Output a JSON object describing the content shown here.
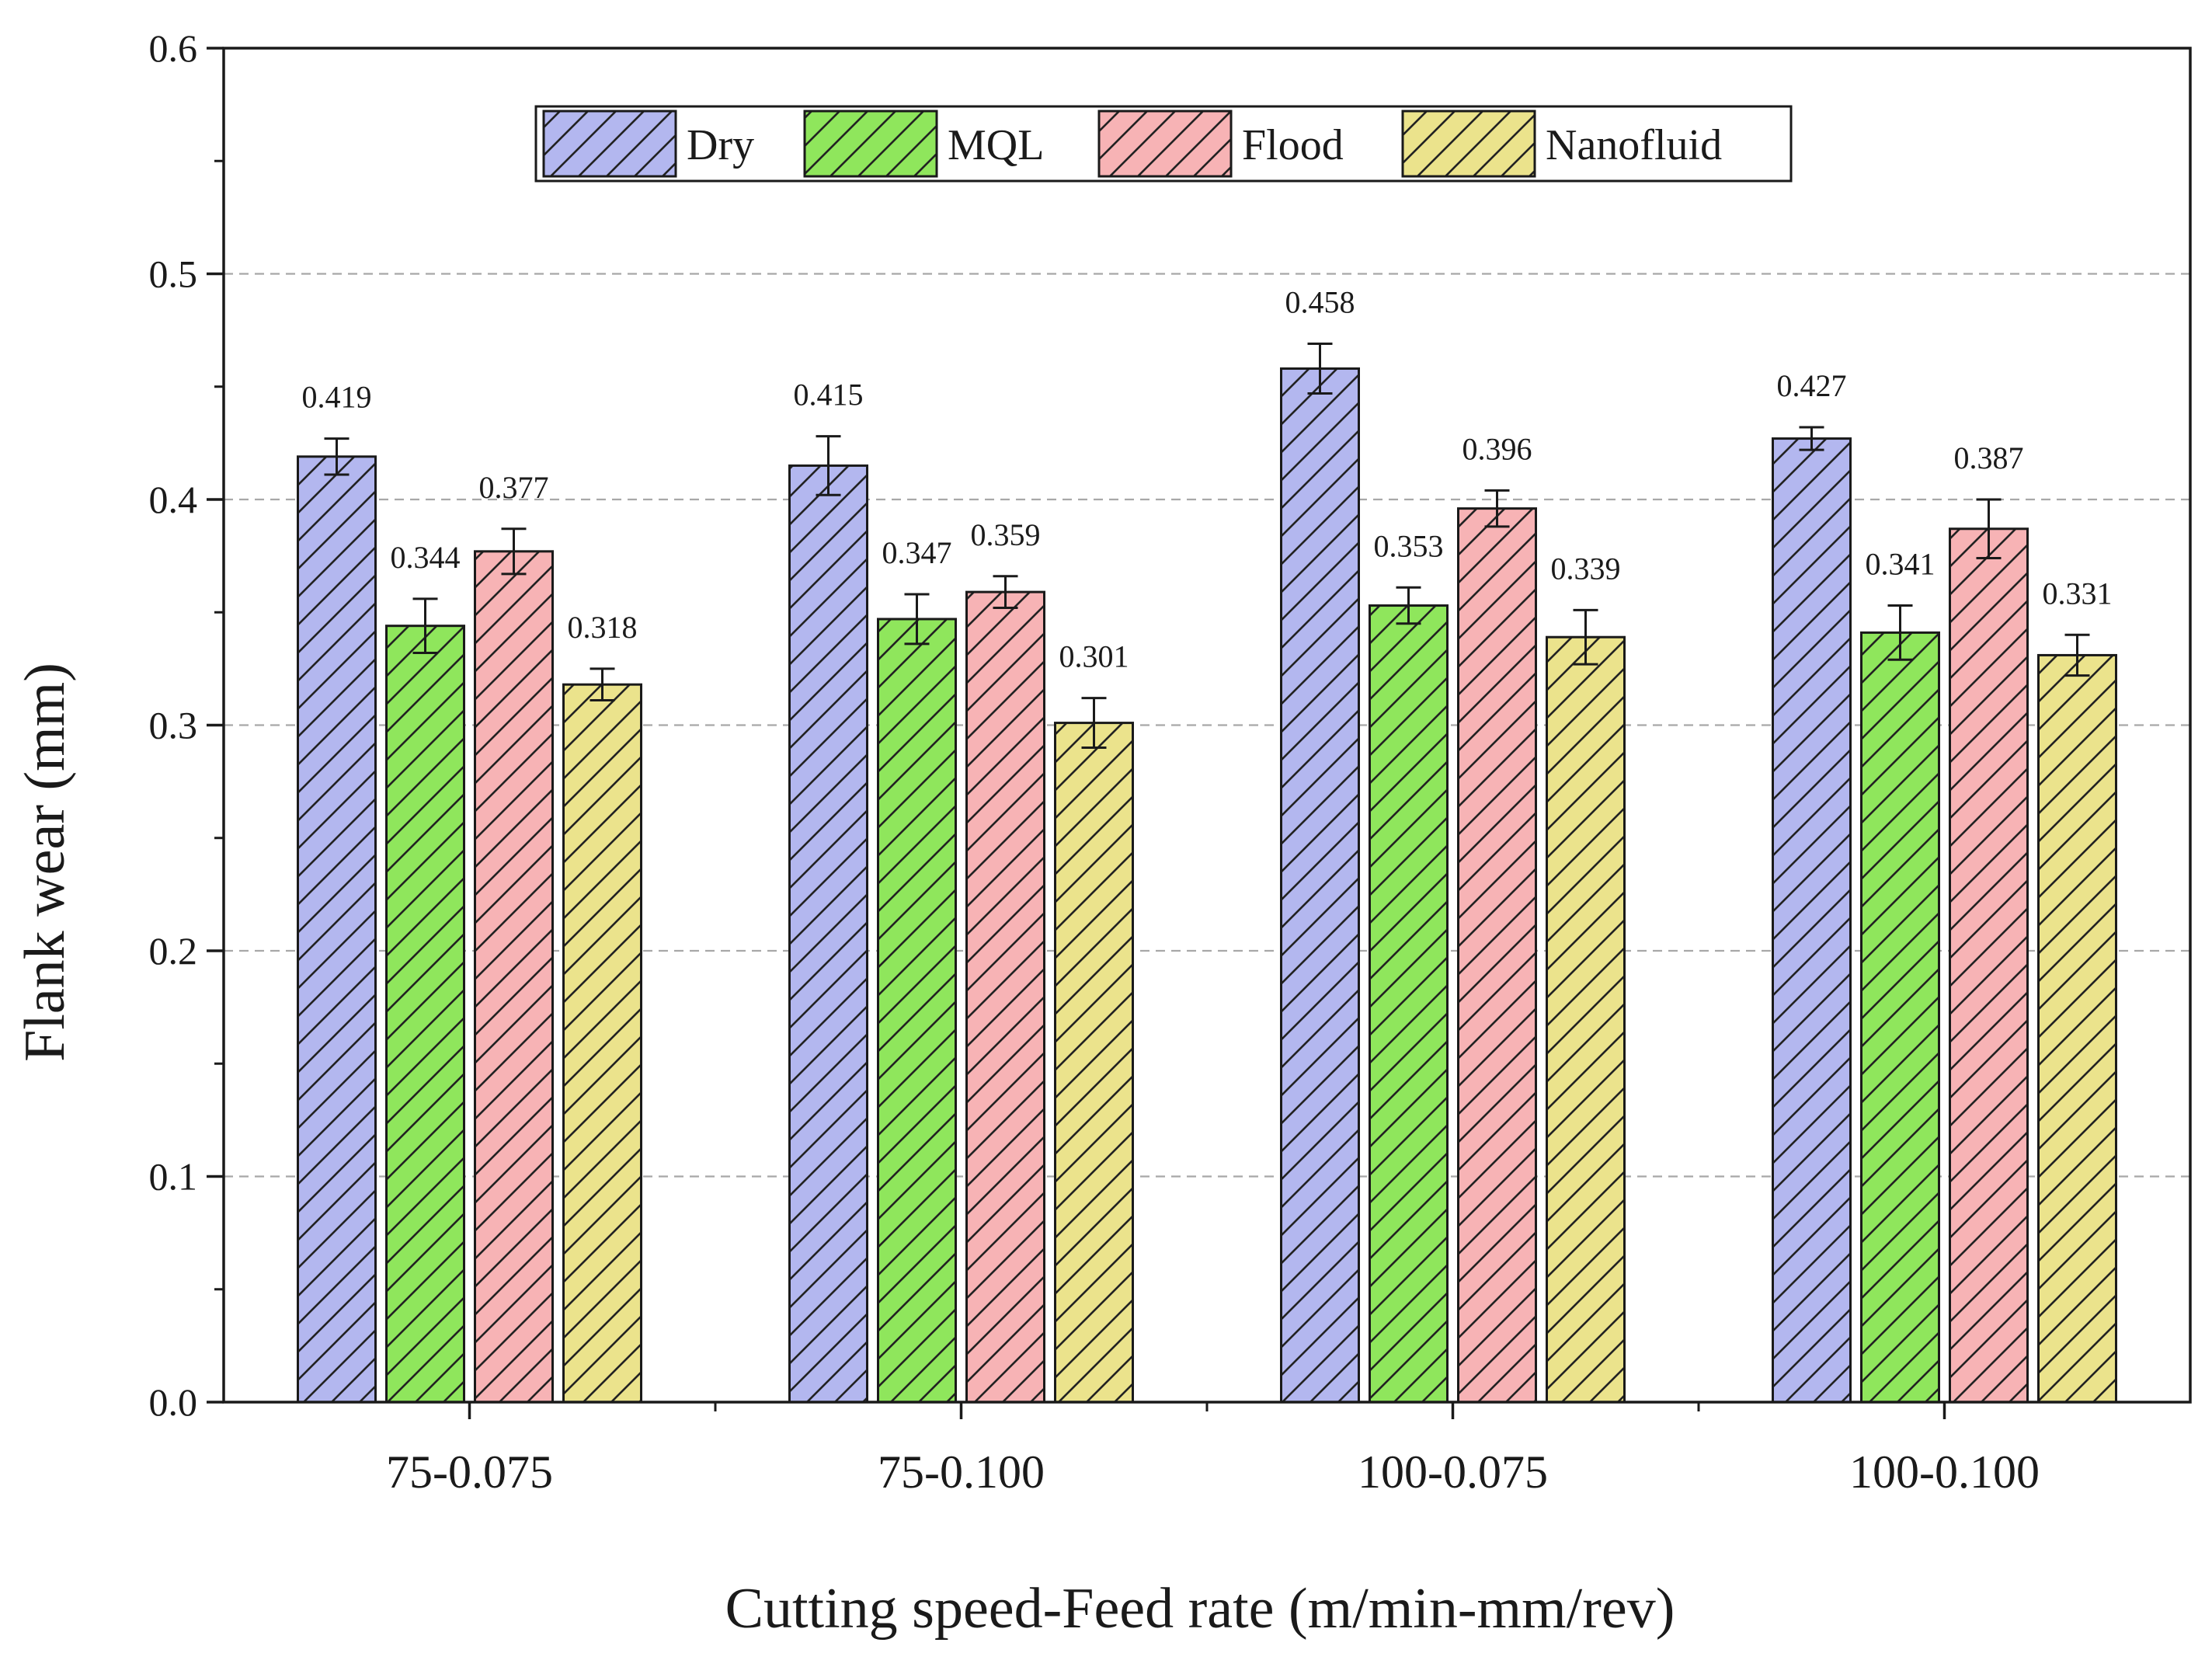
{
  "chart_data": {
    "type": "bar",
    "title": "",
    "xlabel": "Cutting speed-Feed rate (m/min-mm/rev)",
    "ylabel": "Flank wear (mm)",
    "ylim": [
      0,
      0.6
    ],
    "yticks": [
      "0.0",
      "0.1",
      "0.2",
      "0.3",
      "0.4",
      "0.5",
      "0.6"
    ],
    "grid": "horizontal dashed",
    "legend_position": "top-center",
    "categories": [
      "75-0.075",
      "75-0.100",
      "100-0.075",
      "100-0.100"
    ],
    "series": [
      {
        "name": "Dry",
        "color": "#b3b7ef",
        "values": [
          0.419,
          0.415,
          0.458,
          0.427
        ],
        "labels": [
          "0.419",
          "0.415",
          "0.458",
          "0.427"
        ],
        "errors": [
          0.008,
          0.013,
          0.011,
          0.005
        ]
      },
      {
        "name": "MQL",
        "color": "#8fe65c",
        "values": [
          0.344,
          0.347,
          0.353,
          0.341
        ],
        "labels": [
          "0.344",
          "0.347",
          "0.353",
          "0.341"
        ],
        "errors": [
          0.012,
          0.011,
          0.008,
          0.012
        ]
      },
      {
        "name": "Flood",
        "color": "#f7b3b5",
        "values": [
          0.377,
          0.359,
          0.396,
          0.387
        ],
        "labels": [
          "0.377",
          "0.359",
          "0.396",
          "0.387"
        ],
        "errors": [
          0.01,
          0.007,
          0.008,
          0.013
        ]
      },
      {
        "name": "Nanofluid",
        "color": "#ebe38c",
        "values": [
          0.318,
          0.301,
          0.339,
          0.331
        ],
        "labels": [
          "0.318",
          "0.301",
          "0.339",
          "0.331"
        ],
        "errors": [
          0.007,
          0.011,
          0.012,
          0.009
        ]
      }
    ]
  }
}
